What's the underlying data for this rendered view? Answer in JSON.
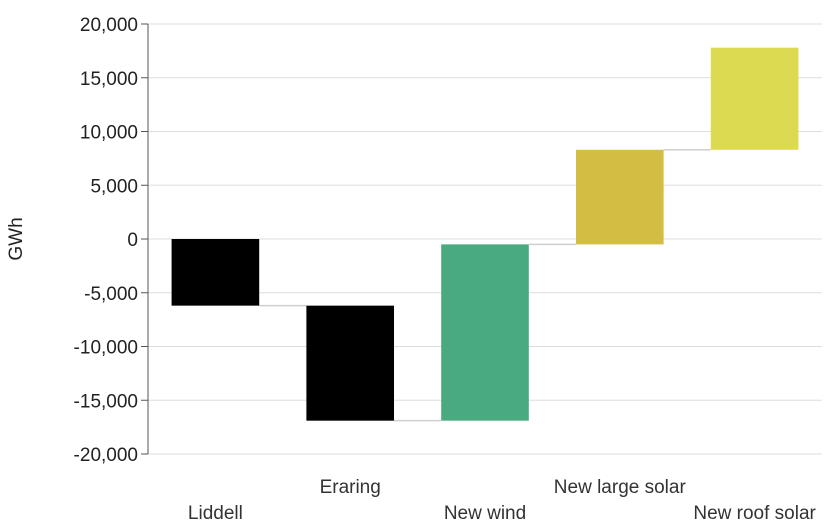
{
  "chart_data": {
    "type": "waterfall",
    "title": "",
    "xlabel": "",
    "ylabel": "GWh",
    "ylim": [
      -20000,
      20000
    ],
    "ytick_step": 5000,
    "yticks": [
      "-20,000",
      "-15,000",
      "-10,000",
      "-5,000",
      "0",
      "5,000",
      "10,000",
      "15,000",
      "20,000"
    ],
    "grid": true,
    "categories": [
      "Liddell",
      "Eraring",
      "New wind",
      "New large solar",
      "New roof solar"
    ],
    "steps": [
      {
        "category": "Liddell",
        "start": 0,
        "end": -6200,
        "color": "#000000"
      },
      {
        "category": "Eraring",
        "start": -6200,
        "end": -16900,
        "color": "#000000"
      },
      {
        "category": "New wind",
        "start": -16900,
        "end": -500,
        "color": "#4aaa7f"
      },
      {
        "category": "New large solar",
        "start": -500,
        "end": 8300,
        "color": "#d4bd43"
      },
      {
        "category": "New roof solar",
        "start": 8300,
        "end": 17800,
        "color": "#dcda50"
      }
    ]
  }
}
